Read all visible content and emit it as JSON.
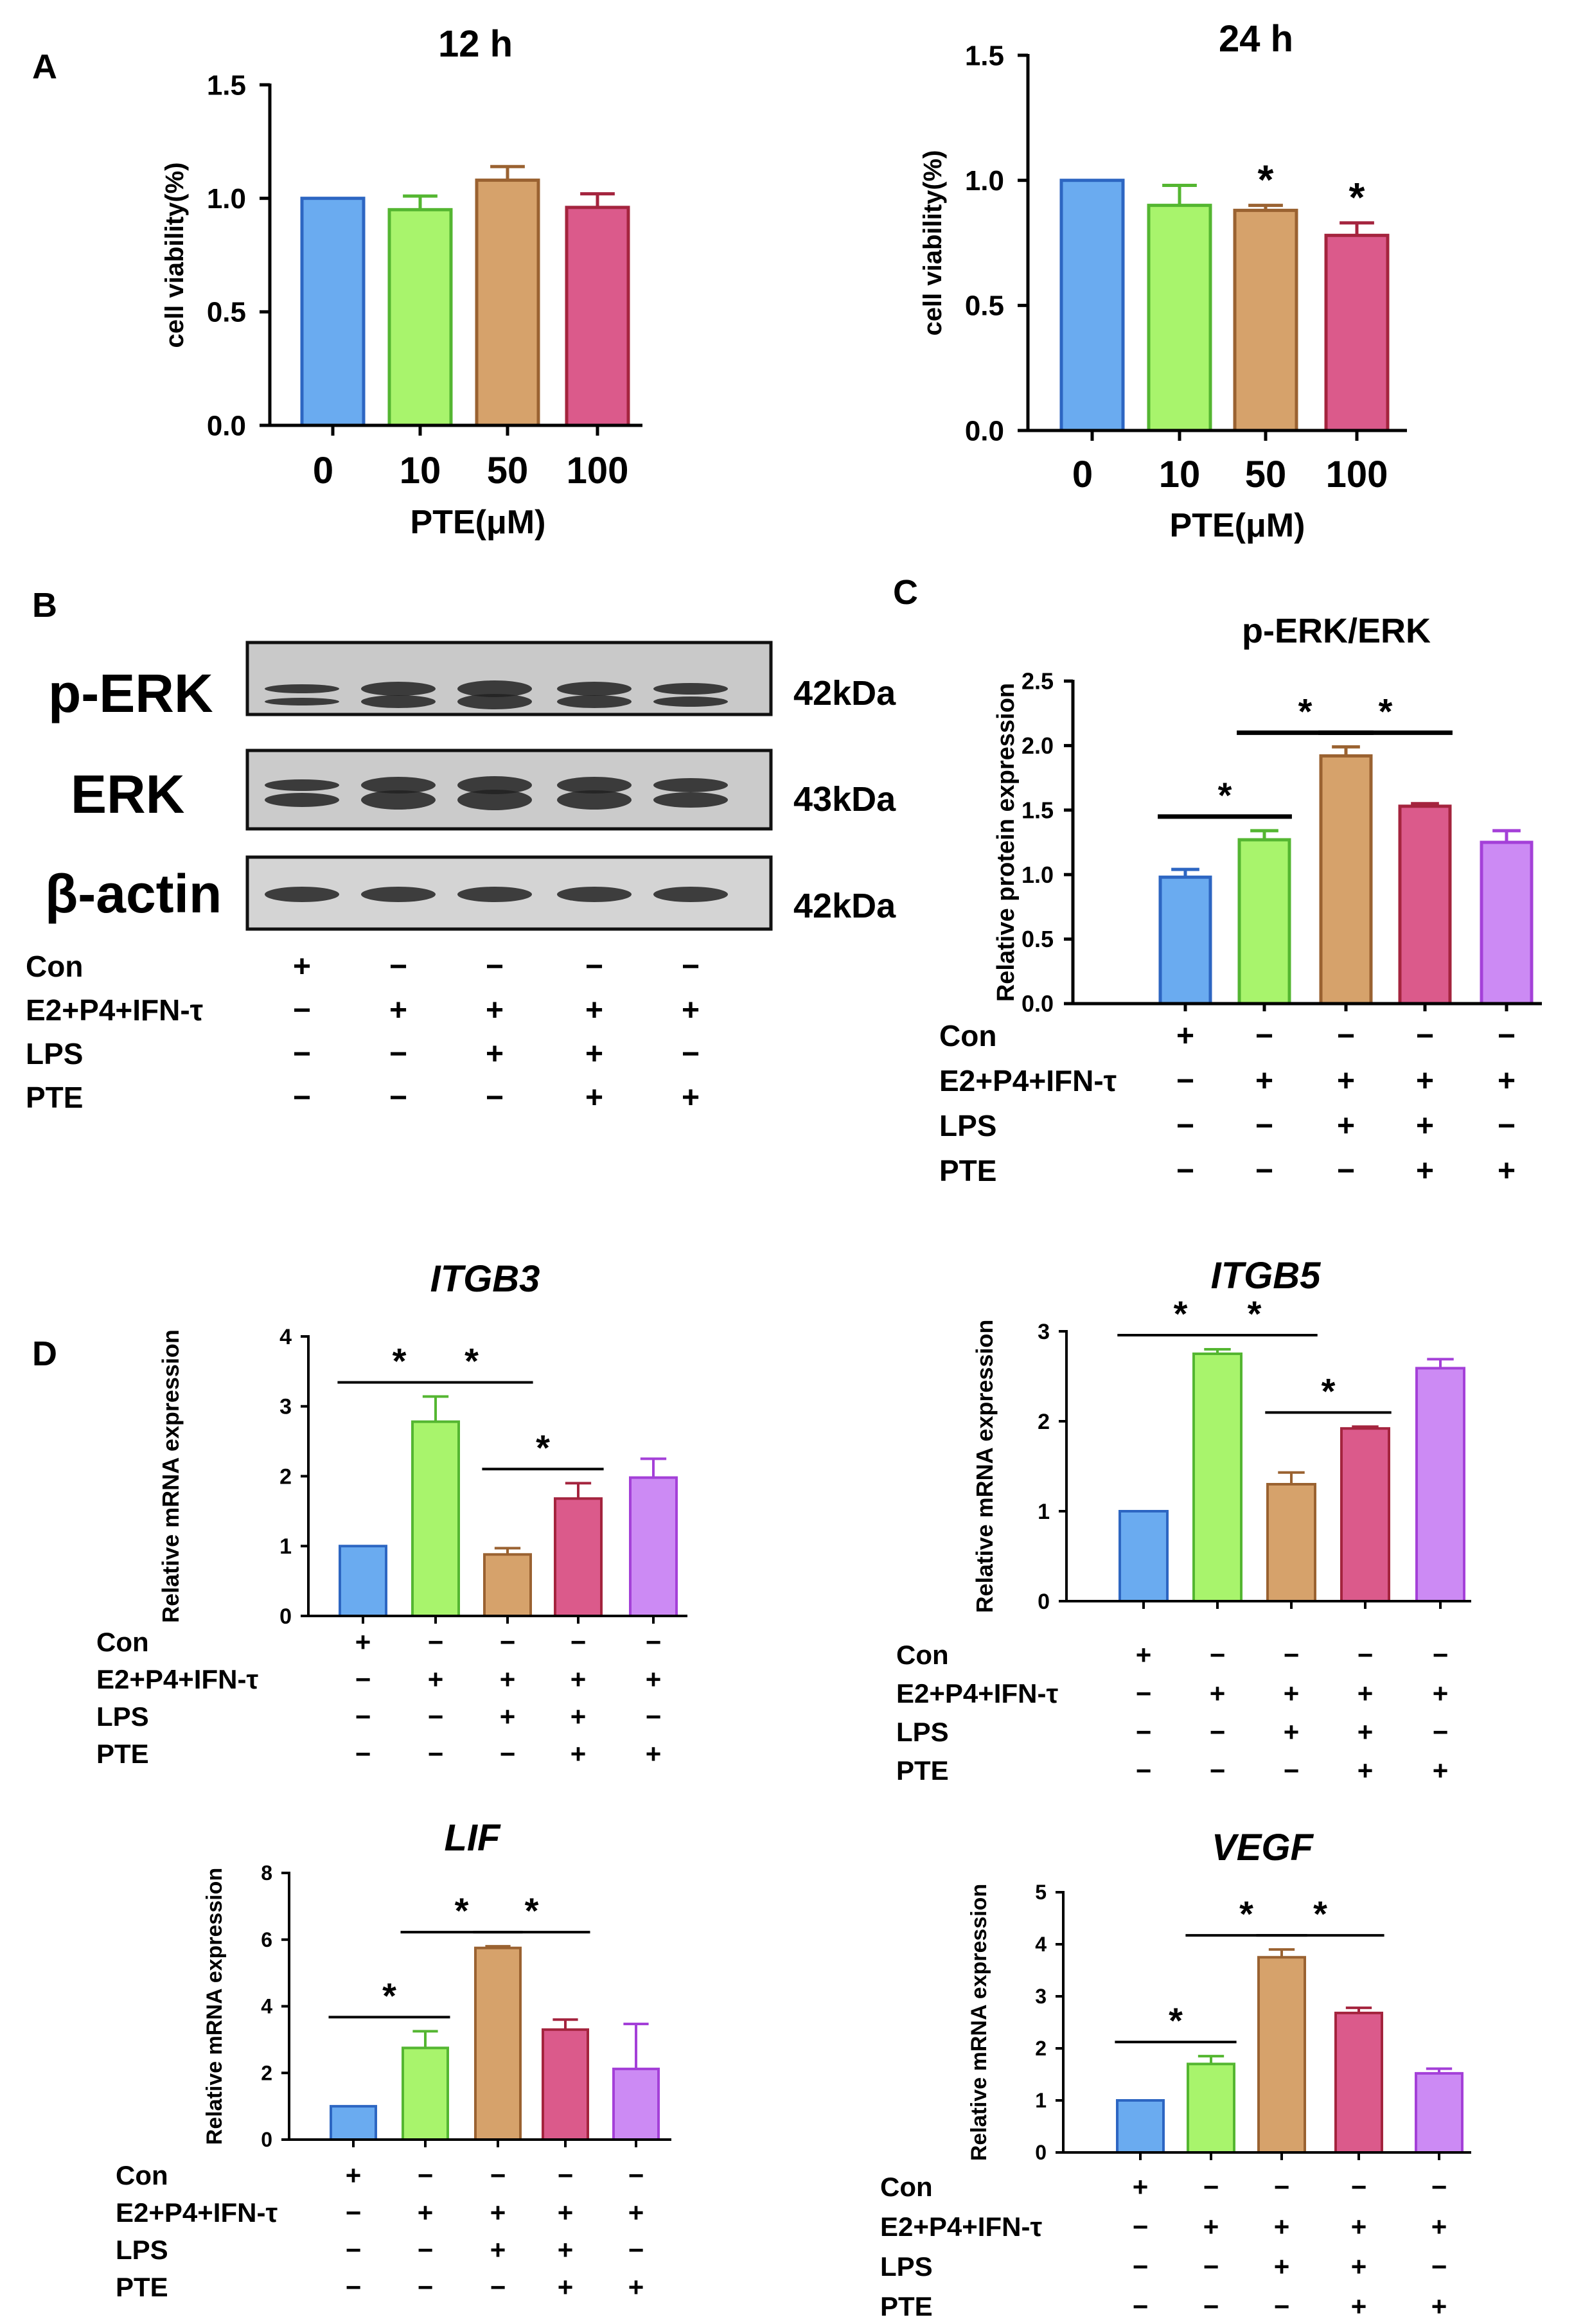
{
  "figure": {
    "panel_labels": [
      "A",
      "B",
      "C",
      "D"
    ],
    "treatment_labels": [
      "Con",
      "E2+P4+IFN-τ",
      "LPS",
      "PTE"
    ],
    "treatment_signs": [
      [
        "+",
        "−",
        "−",
        "−",
        "−"
      ],
      [
        "−",
        "+",
        "+",
        "+",
        "+"
      ],
      [
        "−",
        "−",
        "+",
        "+",
        "−"
      ],
      [
        "−",
        "−",
        "−",
        "+",
        "+"
      ]
    ],
    "significance_mark": "*",
    "western_blot": {
      "rows": [
        {
          "label": "p-ERK",
          "size": "42kDa"
        },
        {
          "label": "ERK",
          "size": "43kDa"
        },
        {
          "label": "β-actin",
          "size": "42kDa"
        }
      ]
    }
  },
  "colors": {
    "five": [
      "#6aabf0",
      "#a8f46c",
      "#d6a26b",
      "#db5a8b",
      "#cc8af4"
    ],
    "five_edge": [
      "#2d66c2",
      "#54b631",
      "#9a6231",
      "#a4243e",
      "#a440d8"
    ],
    "viability": [
      "#6aabf0",
      "#a8f46c",
      "#d6a26b",
      "#db5a8b"
    ],
    "viability_edge": [
      "#2d66c2",
      "#54b631",
      "#9a6231",
      "#a4243e"
    ]
  },
  "chart_data": [
    {
      "id": "v12",
      "type": "bar",
      "title": "12 h",
      "xlabel": "PTE(μM)",
      "ylabel": "cell viability(%)",
      "categories": [
        "0",
        "10",
        "50",
        "100"
      ],
      "values": [
        1.0,
        0.95,
        1.08,
        0.96
      ],
      "errors": [
        0,
        0.06,
        0.06,
        0.06
      ],
      "ylim": [
        0,
        1.5
      ],
      "yticks": [
        "0.0",
        "0.5",
        "1.0",
        "1.5"
      ],
      "stars": []
    },
    {
      "id": "v24",
      "type": "bar",
      "title": "24 h",
      "xlabel": "PTE(μM)",
      "ylabel": "cell viability(%)",
      "categories": [
        "0",
        "10",
        "50",
        "100"
      ],
      "values": [
        1.0,
        0.9,
        0.88,
        0.78
      ],
      "errors": [
        0,
        0.08,
        0.02,
        0.05
      ],
      "ylim": [
        0,
        1.5
      ],
      "yticks": [
        "0.0",
        "0.5",
        "1.0",
        "1.5"
      ],
      "stars": [
        2,
        3
      ]
    },
    {
      "id": "perk",
      "type": "bar",
      "title": "p-ERK/ERK",
      "ylabel": "Relative protein expression",
      "values": [
        0.98,
        1.27,
        1.92,
        1.53,
        1.25
      ],
      "errors": [
        0.06,
        0.07,
        0.07,
        0.02,
        0.09
      ],
      "ylim": [
        0,
        2.5
      ],
      "yticks": [
        "0.0",
        "0.5",
        "1.0",
        "1.5",
        "2.0",
        "2.5"
      ],
      "comparisons": [
        [
          0,
          1
        ],
        [
          1,
          2
        ],
        [
          2,
          3
        ]
      ]
    },
    {
      "id": "itgb3",
      "type": "bar",
      "title": "ITGB3",
      "ylabel": "Relative mRNA expression",
      "values": [
        1.0,
        2.78,
        0.88,
        1.68,
        1.98
      ],
      "errors": [
        0,
        0.36,
        0.09,
        0.22,
        0.27
      ],
      "ylim": [
        0,
        4
      ],
      "yticks": [
        "0",
        "1",
        "2",
        "3",
        "4"
      ],
      "comparisons": [
        [
          0,
          1
        ],
        [
          1,
          2
        ],
        [
          2,
          3
        ]
      ]
    },
    {
      "id": "itgb5",
      "type": "bar",
      "title": "ITGB5",
      "ylabel": "Relative mRNA expression",
      "values": [
        1.0,
        2.75,
        1.3,
        1.92,
        2.59
      ],
      "errors": [
        0,
        0.05,
        0.13,
        0.02,
        0.1
      ],
      "ylim": [
        0,
        3
      ],
      "yticks": [
        "0",
        "1",
        "2",
        "3"
      ],
      "comparisons": [
        [
          0,
          1
        ],
        [
          1,
          2
        ],
        [
          2,
          3
        ]
      ]
    },
    {
      "id": "lif",
      "type": "bar",
      "title": "LIF",
      "ylabel": "Relative mRNA expression",
      "values": [
        1.0,
        2.75,
        5.75,
        3.3,
        2.12
      ],
      "errors": [
        0,
        0.5,
        0.05,
        0.3,
        1.35
      ],
      "ylim": [
        0,
        8
      ],
      "yticks": [
        "0",
        "2",
        "4",
        "6",
        "8"
      ],
      "comparisons": [
        [
          0,
          1
        ],
        [
          1,
          2
        ],
        [
          2,
          3
        ]
      ]
    },
    {
      "id": "vegf",
      "type": "bar",
      "title": "VEGF",
      "ylabel": "Relative mRNA expression",
      "values": [
        1.0,
        1.7,
        3.75,
        2.68,
        1.52
      ],
      "errors": [
        0,
        0.15,
        0.15,
        0.1,
        0.09
      ],
      "ylim": [
        0,
        5
      ],
      "yticks": [
        "0",
        "1",
        "2",
        "3",
        "4",
        "5"
      ],
      "comparisons": [
        [
          0,
          1
        ],
        [
          1,
          2
        ],
        [
          2,
          3
        ]
      ]
    }
  ]
}
